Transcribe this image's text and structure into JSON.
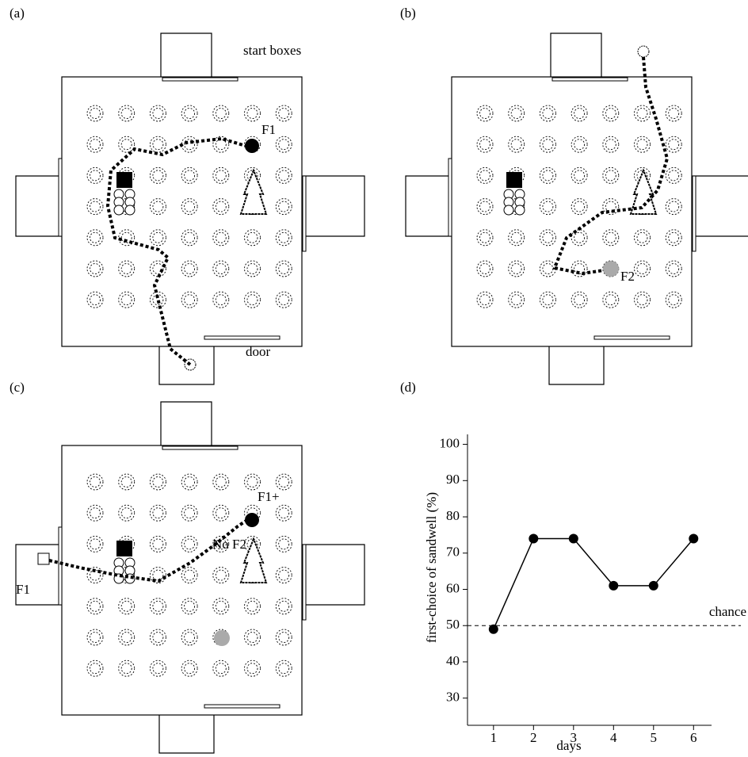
{
  "panels": [
    {
      "label": "(a)",
      "annotations": [
        "start boxes",
        "door",
        "F1"
      ]
    },
    {
      "label": "(b)",
      "annotations": [
        "F2"
      ]
    },
    {
      "label": "(c)",
      "annotations": [
        "F1+",
        "No F2",
        "F1"
      ]
    },
    {
      "label": "(d)"
    }
  ],
  "chart_data": {
    "type": "line",
    "x_label": "days",
    "y_label": "first-choice of sandwell (%)",
    "x": [
      1,
      2,
      3,
      4,
      5,
      6
    ],
    "values": [
      49,
      74,
      74,
      61,
      61,
      74
    ],
    "color": "#000000",
    "xlim": [
      0.35,
      6.45
    ],
    "xticks": [
      1,
      2,
      3,
      4,
      5,
      6
    ],
    "ylim": [
      22.5,
      101
    ],
    "yticks": [
      30,
      40,
      50,
      60,
      70,
      80,
      90,
      100
    ],
    "reference_line": {
      "value": 50,
      "label": "chance"
    }
  }
}
